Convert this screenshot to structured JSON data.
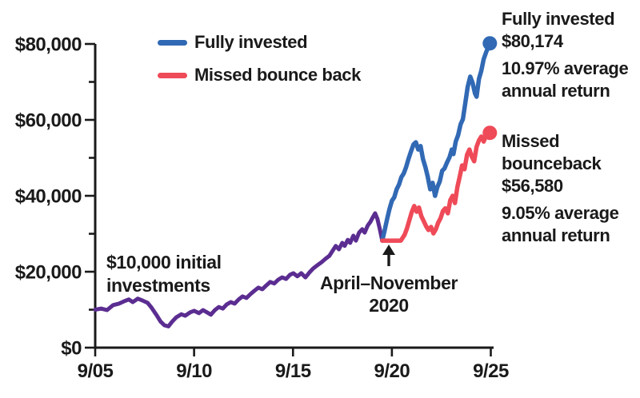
{
  "legend": {
    "items": [
      {
        "id": "fully-invested",
        "label": "Fully invested",
        "color": "#3169b4"
      },
      {
        "id": "missed-bounce-back",
        "label": "Missed bounce back",
        "color": "#ef4a58"
      }
    ]
  },
  "annotations": {
    "initial": {
      "line1": "$10,000 initial",
      "line2": "investments"
    },
    "gap": {
      "line1": "April–November",
      "line2": "2020"
    },
    "fully": {
      "title": "Fully invested",
      "value": "$80,174",
      "pct_line1": "10.97% average",
      "pct_line2": "annual return"
    },
    "missed": {
      "title_line1": "Missed",
      "title_line2": "bounceback",
      "value": "$56,580",
      "pct_line1": "9.05% average",
      "pct_line2": "annual return"
    }
  },
  "chart_data": {
    "type": "line",
    "title": "",
    "xlabel": "",
    "ylabel": "",
    "axis_color": "#1a1a1a",
    "grid": false,
    "legend_position": "top-left",
    "ylim": [
      0,
      80000
    ],
    "x_axis": {
      "ticks": [
        {
          "year": 2005.75,
          "label": "9/05"
        },
        {
          "year": 2010.75,
          "label": "9/10"
        },
        {
          "year": 2015.75,
          "label": "9/15"
        },
        {
          "year": 2020.75,
          "label": "9/20"
        },
        {
          "year": 2025.75,
          "label": "9/25"
        }
      ]
    },
    "y_axis": {
      "ticks": [
        {
          "value": 0,
          "label": "$0",
          "major": true
        },
        {
          "value": 10000,
          "label": "",
          "major": false
        },
        {
          "value": 20000,
          "label": "$20,000",
          "major": true
        },
        {
          "value": 30000,
          "label": "",
          "major": false
        },
        {
          "value": 40000,
          "label": "$40,000",
          "major": true
        },
        {
          "value": 50000,
          "label": "",
          "major": false
        },
        {
          "value": 60000,
          "label": "$60,000",
          "major": true
        },
        {
          "value": 70000,
          "label": "",
          "major": false
        },
        {
          "value": 80000,
          "label": "$80,000",
          "major": true
        }
      ]
    },
    "series": [
      {
        "id": "shared-history",
        "name": "Initial $10,000 investment (2005-2020)",
        "color": "#5b2d91",
        "width": 5,
        "end_dot": false,
        "points": [
          [
            2005.75,
            10000
          ],
          [
            2006.05,
            10300
          ],
          [
            2006.35,
            9900
          ],
          [
            2006.65,
            11200
          ],
          [
            2006.95,
            11600
          ],
          [
            2007.2,
            12200
          ],
          [
            2007.45,
            12700
          ],
          [
            2007.65,
            12000
          ],
          [
            2007.9,
            12900
          ],
          [
            2008.15,
            12400
          ],
          [
            2008.4,
            11800
          ],
          [
            2008.6,
            10500
          ],
          [
            2008.85,
            8600
          ],
          [
            2009.05,
            6900
          ],
          [
            2009.25,
            5900
          ],
          [
            2009.45,
            5600
          ],
          [
            2009.65,
            6900
          ],
          [
            2009.85,
            8000
          ],
          [
            2010.1,
            8800
          ],
          [
            2010.3,
            8400
          ],
          [
            2010.55,
            9300
          ],
          [
            2010.75,
            9700
          ],
          [
            2011.0,
            9100
          ],
          [
            2011.2,
            9900
          ],
          [
            2011.4,
            9300
          ],
          [
            2011.6,
            8700
          ],
          [
            2011.8,
            9900
          ],
          [
            2012.0,
            10700
          ],
          [
            2012.2,
            10300
          ],
          [
            2012.4,
            11400
          ],
          [
            2012.6,
            12000
          ],
          [
            2012.8,
            11600
          ],
          [
            2013.0,
            12700
          ],
          [
            2013.2,
            13500
          ],
          [
            2013.4,
            13100
          ],
          [
            2013.6,
            14100
          ],
          [
            2013.8,
            15000
          ],
          [
            2014.0,
            15800
          ],
          [
            2014.2,
            15400
          ],
          [
            2014.4,
            16400
          ],
          [
            2014.6,
            17300
          ],
          [
            2014.8,
            16900
          ],
          [
            2015.0,
            17900
          ],
          [
            2015.2,
            18500
          ],
          [
            2015.4,
            18100
          ],
          [
            2015.6,
            19200
          ],
          [
            2015.77,
            19600
          ],
          [
            2015.97,
            18800
          ],
          [
            2016.17,
            19600
          ],
          [
            2016.38,
            18500
          ],
          [
            2016.58,
            19800
          ],
          [
            2016.78,
            20900
          ],
          [
            2016.98,
            21700
          ],
          [
            2017.19,
            22500
          ],
          [
            2017.39,
            23400
          ],
          [
            2017.59,
            24200
          ],
          [
            2017.75,
            25500
          ],
          [
            2017.91,
            26800
          ],
          [
            2018.07,
            25900
          ],
          [
            2018.24,
            27600
          ],
          [
            2018.36,
            26800
          ],
          [
            2018.52,
            28400
          ],
          [
            2018.64,
            27600
          ],
          [
            2018.8,
            29500
          ],
          [
            2018.93,
            28200
          ],
          [
            2019.09,
            30300
          ],
          [
            2019.25,
            31200
          ],
          [
            2019.37,
            30300
          ],
          [
            2019.53,
            32200
          ],
          [
            2019.66,
            33100
          ],
          [
            2019.78,
            34300
          ],
          [
            2019.9,
            35400
          ],
          [
            2020.02,
            33900
          ],
          [
            2020.14,
            31200
          ],
          [
            2020.26,
            28200
          ]
        ]
      },
      {
        "id": "fully-invested",
        "name": "Fully invested",
        "color": "#3169b4",
        "width": 5.5,
        "end_dot": true,
        "end_value": 80174,
        "avg_annual_return_pct": 10.97,
        "points": [
          [
            2020.26,
            28200
          ],
          [
            2020.38,
            30800
          ],
          [
            2020.5,
            33700
          ],
          [
            2020.62,
            36400
          ],
          [
            2020.75,
            38700
          ],
          [
            2020.87,
            39600
          ],
          [
            2020.99,
            41700
          ],
          [
            2021.11,
            43000
          ],
          [
            2021.23,
            44900
          ],
          [
            2021.35,
            45900
          ],
          [
            2021.47,
            47600
          ],
          [
            2021.59,
            49700
          ],
          [
            2021.72,
            51800
          ],
          [
            2021.84,
            53500
          ],
          [
            2021.96,
            54100
          ],
          [
            2022.08,
            52200
          ],
          [
            2022.2,
            53100
          ],
          [
            2022.32,
            49700
          ],
          [
            2022.44,
            47600
          ],
          [
            2022.56,
            45100
          ],
          [
            2022.69,
            41700
          ],
          [
            2022.81,
            43400
          ],
          [
            2022.93,
            40000
          ],
          [
            2023.05,
            42300
          ],
          [
            2023.17,
            43800
          ],
          [
            2023.29,
            46600
          ],
          [
            2023.41,
            47200
          ],
          [
            2023.53,
            48700
          ],
          [
            2023.66,
            50100
          ],
          [
            2023.78,
            52200
          ],
          [
            2023.86,
            51000
          ],
          [
            2023.98,
            54300
          ],
          [
            2024.1,
            56000
          ],
          [
            2024.22,
            58800
          ],
          [
            2024.34,
            60200
          ],
          [
            2024.46,
            64400
          ],
          [
            2024.58,
            68700
          ],
          [
            2024.71,
            71400
          ],
          [
            2024.83,
            69700
          ],
          [
            2024.95,
            67000
          ],
          [
            2025.03,
            66100
          ],
          [
            2025.15,
            70800
          ],
          [
            2025.27,
            72900
          ],
          [
            2025.39,
            76000
          ],
          [
            2025.52,
            77900
          ],
          [
            2025.7,
            80174
          ]
        ]
      },
      {
        "id": "missed-bounce-back",
        "name": "Missed bounce back",
        "color": "#ef4a58",
        "width": 5.5,
        "end_dot": true,
        "end_value": 56580,
        "avg_annual_return_pct": 9.05,
        "points": [
          [
            2020.26,
            28200
          ],
          [
            2020.5,
            28200
          ],
          [
            2020.75,
            28200
          ],
          [
            2021.0,
            28200
          ],
          [
            2021.2,
            28200
          ],
          [
            2021.39,
            29700
          ],
          [
            2021.51,
            31400
          ],
          [
            2021.63,
            33500
          ],
          [
            2021.76,
            35800
          ],
          [
            2021.88,
            37300
          ],
          [
            2022.0,
            35800
          ],
          [
            2022.12,
            36900
          ],
          [
            2022.24,
            34600
          ],
          [
            2022.36,
            33300
          ],
          [
            2022.48,
            32000
          ],
          [
            2022.6,
            31000
          ],
          [
            2022.73,
            31800
          ],
          [
            2022.85,
            30100
          ],
          [
            2022.97,
            31200
          ],
          [
            2023.09,
            32900
          ],
          [
            2023.21,
            34100
          ],
          [
            2023.33,
            36000
          ],
          [
            2023.45,
            36700
          ],
          [
            2023.58,
            35400
          ],
          [
            2023.7,
            38800
          ],
          [
            2023.82,
            40000
          ],
          [
            2023.94,
            38100
          ],
          [
            2024.06,
            42300
          ],
          [
            2024.18,
            45100
          ],
          [
            2024.3,
            48000
          ],
          [
            2024.42,
            47000
          ],
          [
            2024.55,
            50800
          ],
          [
            2024.67,
            52200
          ],
          [
            2024.79,
            50300
          ],
          [
            2024.91,
            49100
          ],
          [
            2025.03,
            52900
          ],
          [
            2025.15,
            54600
          ],
          [
            2025.27,
            55600
          ],
          [
            2025.39,
            54300
          ],
          [
            2025.52,
            56000
          ],
          [
            2025.7,
            56580
          ]
        ]
      }
    ]
  }
}
